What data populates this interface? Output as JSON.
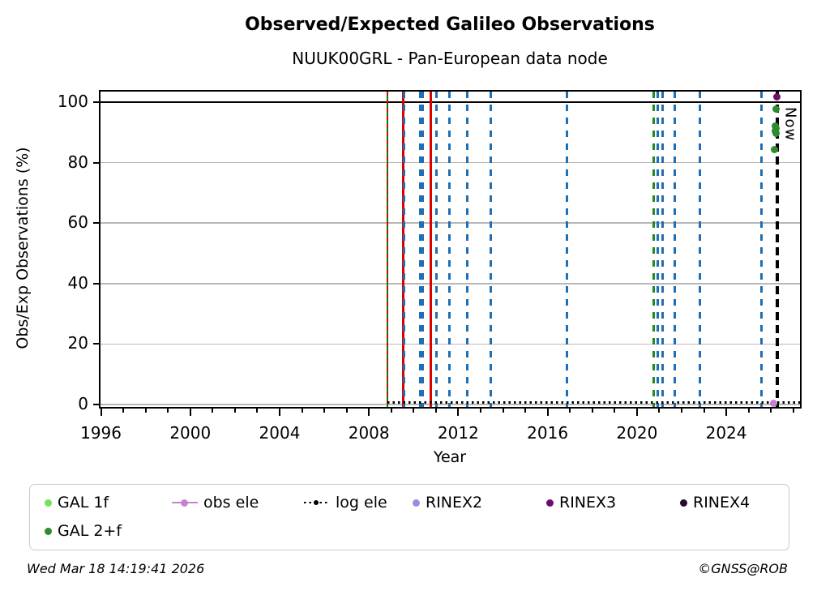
{
  "header": {
    "title": "Observed/Expected Galileo Observations",
    "subtitle": "NUUK00GRL - Pan-European data node"
  },
  "footer": {
    "timestamp": "Wed Mar 18 14:19:41 2026",
    "copyright": "©GNSS@ROB"
  },
  "chart_data": {
    "type": "scatter",
    "title": "Observed/Expected Galileo Observations",
    "subtitle": "NUUK00GRL - Pan-European data node",
    "xlabel": "Year",
    "ylabel": "Obs/Exp Observations (%)",
    "xlim": [
      1995.98,
      2027.3
    ],
    "ylim": [
      -0.8,
      103.5
    ],
    "grid": "horizontal-only",
    "xticks_major": [
      1996,
      2000,
      2004,
      2008,
      2012,
      2016,
      2020,
      2024
    ],
    "xticks_minor_step": 1,
    "yticks": [
      0,
      20,
      40,
      60,
      80,
      100
    ],
    "hline_y100": {
      "y": 100,
      "color": "#000000"
    },
    "log_ele_line": {
      "y": 0.7,
      "x_start": 2008.83,
      "x_end": 2027.3,
      "color": "#000000",
      "style": "dotted"
    },
    "event_lines": [
      {
        "year": 2008.83,
        "color": "#008000",
        "style": "solid"
      },
      {
        "year": 2008.83,
        "color": "#dd0000",
        "style": "dashed-fine"
      },
      {
        "year": 2009.55,
        "color": "#dd0000",
        "style": "solid"
      },
      {
        "year": 2009.58,
        "color": "#1f6fb4",
        "style": "dashed"
      },
      {
        "year": 2010.3,
        "color": "#1f6fb4",
        "style": "dashed"
      },
      {
        "year": 2010.42,
        "color": "#1f6fb4",
        "style": "dashed"
      },
      {
        "year": 2010.78,
        "color": "#dd0000",
        "style": "solid"
      },
      {
        "year": 2011.02,
        "color": "#1f6fb4",
        "style": "dashed"
      },
      {
        "year": 2011.6,
        "color": "#1f6fb4",
        "style": "dashed"
      },
      {
        "year": 2012.4,
        "color": "#1f6fb4",
        "style": "dashed"
      },
      {
        "year": 2013.45,
        "color": "#1f6fb4",
        "style": "dashed"
      },
      {
        "year": 2016.88,
        "color": "#1f6fb4",
        "style": "dashed"
      },
      {
        "year": 2020.75,
        "color": "#228B22",
        "style": "dashed"
      },
      {
        "year": 2020.92,
        "color": "#1f6fb4",
        "style": "dashed"
      },
      {
        "year": 2021.15,
        "color": "#1f6fb4",
        "style": "dashed"
      },
      {
        "year": 2021.7,
        "color": "#1f6fb4",
        "style": "dashed"
      },
      {
        "year": 2022.82,
        "color": "#1f6fb4",
        "style": "dashed"
      },
      {
        "year": 2025.58,
        "color": "#1f6fb4",
        "style": "dashed"
      }
    ],
    "now_line": {
      "year": 2026.3,
      "label": "Now",
      "color": "#000000",
      "style": "dashed"
    },
    "points": [
      {
        "series": "RINEX3",
        "year": 2026.25,
        "value": 101.7,
        "color": "#6e0d6e"
      },
      {
        "series": "GAL 2+f",
        "year": 2026.22,
        "value": 97.7,
        "color": "#2e8b2e"
      },
      {
        "series": "GAL 2+f",
        "year": 2026.18,
        "value": 92.1,
        "color": "#2e8b2e"
      },
      {
        "series": "GAL 2+f",
        "year": 2026.24,
        "value": 91.3,
        "color": "#2e8b2e"
      },
      {
        "series": "GAL 2+f",
        "year": 2026.18,
        "value": 90.5,
        "color": "#2e8b2e"
      },
      {
        "series": "GAL 2+f",
        "year": 2026.22,
        "value": 89.6,
        "color": "#2e8b2e"
      },
      {
        "series": "GAL 2+f",
        "year": 2026.15,
        "value": 84.4,
        "color": "#2e8b2e"
      },
      {
        "series": "obs ele",
        "year": 2026.12,
        "value": 0.5,
        "color": "#c583ce"
      }
    ],
    "legend": [
      {
        "label": "GAL 1f",
        "marker": "dot",
        "color": "#72e35a"
      },
      {
        "label": "obs ele",
        "marker": "line-dot",
        "color": "#c583ce"
      },
      {
        "label": "log ele",
        "marker": "dotted-line",
        "color": "#000000"
      },
      {
        "label": "RINEX2",
        "marker": "dot",
        "color": "#978fd7"
      },
      {
        "label": "RINEX3",
        "marker": "dot",
        "color": "#6e0d6e"
      },
      {
        "label": "RINEX4",
        "marker": "dot",
        "color": "#260a33"
      },
      {
        "label": "GAL 2+f",
        "marker": "dot",
        "color": "#2e8b2e"
      }
    ],
    "legend_position": "below"
  }
}
